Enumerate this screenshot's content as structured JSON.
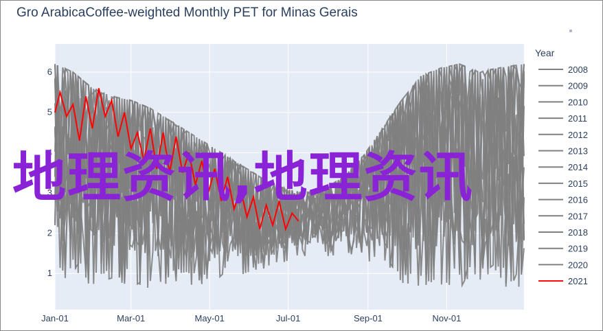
{
  "chart_data": {
    "type": "line",
    "title": "Gro ArabicaCoffee-weighted Monthly PET for Minas Gerais",
    "xlabel": "",
    "ylabel": "",
    "x_ticks": [
      "Jan-01",
      "Mar-01",
      "May-01",
      "Jul-01",
      "Sep-01",
      "Nov-01"
    ],
    "y_ticks": [
      "1",
      "2",
      "3",
      "4",
      "5",
      "6"
    ],
    "ylim": [
      0.1,
      6.7
    ],
    "legend_title": "Year",
    "legend_position": "right",
    "grid": true,
    "colors": {
      "background": "#e5ecf6",
      "gray_series": "#808080",
      "highlight_series": "#ff0000",
      "text": "#2a3f5f"
    },
    "series": [
      {
        "name": "2008",
        "color": "#808080"
      },
      {
        "name": "2009",
        "color": "#808080"
      },
      {
        "name": "2010",
        "color": "#808080"
      },
      {
        "name": "2011",
        "color": "#808080"
      },
      {
        "name": "2012",
        "color": "#808080"
      },
      {
        "name": "2013",
        "color": "#808080"
      },
      {
        "name": "2014",
        "color": "#808080"
      },
      {
        "name": "2015",
        "color": "#808080"
      },
      {
        "name": "2016",
        "color": "#808080"
      },
      {
        "name": "2017",
        "color": "#808080"
      },
      {
        "name": "2018",
        "color": "#808080"
      },
      {
        "name": "2019",
        "color": "#808080"
      },
      {
        "name": "2020",
        "color": "#808080"
      },
      {
        "name": "2021",
        "color": "#ff0000"
      }
    ],
    "envelope_upper": [
      [
        1,
        6.2
      ],
      [
        15,
        6.0
      ],
      [
        30,
        5.6
      ],
      [
        45,
        5.4
      ],
      [
        60,
        5.3
      ],
      [
        75,
        5.1
      ],
      [
        90,
        4.8
      ],
      [
        105,
        4.5
      ],
      [
        120,
        4.2
      ],
      [
        135,
        3.9
      ],
      [
        150,
        3.6
      ],
      [
        165,
        3.3
      ],
      [
        180,
        3.1
      ],
      [
        195,
        3.0
      ],
      [
        210,
        3.1
      ],
      [
        225,
        3.4
      ],
      [
        240,
        3.9
      ],
      [
        255,
        4.6
      ],
      [
        270,
        5.3
      ],
      [
        285,
        5.9
      ],
      [
        300,
        6.1
      ],
      [
        315,
        6.2
      ],
      [
        330,
        6.0
      ],
      [
        345,
        6.1
      ],
      [
        365,
        6.2
      ]
    ],
    "envelope_lower": [
      [
        1,
        0.8
      ],
      [
        15,
        0.9
      ],
      [
        30,
        0.7
      ],
      [
        45,
        0.8
      ],
      [
        60,
        0.7
      ],
      [
        75,
        0.5
      ],
      [
        90,
        0.6
      ],
      [
        105,
        0.7
      ],
      [
        120,
        0.6
      ],
      [
        135,
        0.8
      ],
      [
        150,
        0.9
      ],
      [
        165,
        1.1
      ],
      [
        180,
        1.3
      ],
      [
        195,
        1.4
      ],
      [
        210,
        1.4
      ],
      [
        225,
        1.5
      ],
      [
        240,
        1.3
      ],
      [
        255,
        1.0
      ],
      [
        270,
        0.7
      ],
      [
        285,
        0.6
      ],
      [
        300,
        0.7
      ],
      [
        315,
        0.6
      ],
      [
        330,
        0.8
      ],
      [
        345,
        0.7
      ],
      [
        365,
        0.6
      ]
    ],
    "series_2021": [
      [
        1,
        5.0
      ],
      [
        5,
        5.5
      ],
      [
        10,
        4.9
      ],
      [
        15,
        5.2
      ],
      [
        20,
        4.3
      ],
      [
        25,
        5.4
      ],
      [
        30,
        4.6
      ],
      [
        35,
        5.6
      ],
      [
        40,
        4.9
      ],
      [
        45,
        5.3
      ],
      [
        50,
        4.4
      ],
      [
        55,
        5.0
      ],
      [
        60,
        4.1
      ],
      [
        65,
        4.5
      ],
      [
        70,
        3.8
      ],
      [
        75,
        4.6
      ],
      [
        80,
        3.6
      ],
      [
        85,
        4.5
      ],
      [
        90,
        3.5
      ],
      [
        95,
        4.4
      ],
      [
        100,
        3.5
      ],
      [
        105,
        4.0
      ],
      [
        110,
        3.2
      ],
      [
        115,
        3.8
      ],
      [
        120,
        3.0
      ],
      [
        125,
        3.6
      ],
      [
        130,
        2.8
      ],
      [
        135,
        3.4
      ],
      [
        140,
        2.6
      ],
      [
        145,
        3.1
      ],
      [
        150,
        2.4
      ],
      [
        155,
        2.9
      ],
      [
        160,
        2.1
      ],
      [
        165,
        2.7
      ],
      [
        170,
        2.2
      ],
      [
        175,
        2.8
      ],
      [
        180,
        2.1
      ],
      [
        185,
        2.5
      ],
      [
        190,
        2.3
      ]
    ]
  }
}
